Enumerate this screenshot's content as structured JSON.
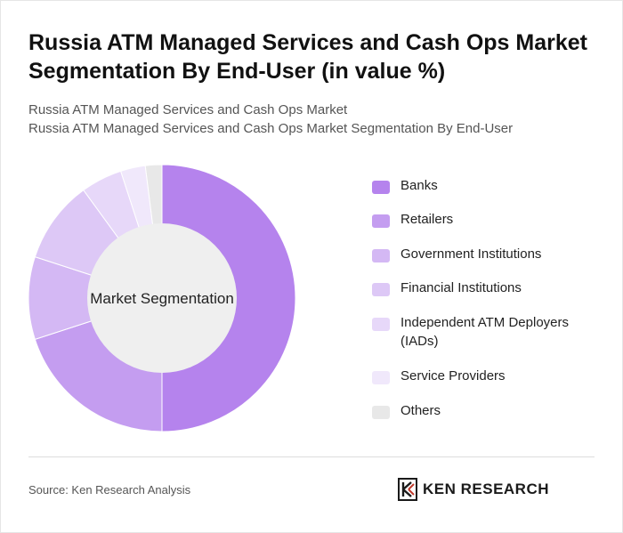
{
  "header": {
    "title": "Russia ATM Managed Services and Cash Ops Market Segmentation By End-User (in value %)",
    "subtitle_line1": "Russia ATM Managed Services and Cash Ops Market",
    "subtitle_line2": "Russia ATM Managed Services and Cash Ops Market Segmentation By End-User"
  },
  "chart_data": {
    "type": "pie",
    "center_label": "Market Segmentation",
    "categories": [
      "Banks",
      "Retailers",
      "Government Institutions",
      "Financial Institutions",
      "Independent ATM Deployers (IADs)",
      "Service Providers",
      "Others"
    ],
    "values": [
      50,
      20,
      10,
      10,
      5,
      3,
      2
    ],
    "colors": [
      "#b583ed",
      "#c49df0",
      "#d4b8f4",
      "#ddc8f6",
      "#e7d8f9",
      "#f0e8fb",
      "#e8e8e8"
    ],
    "legend_position": "right"
  },
  "footer": {
    "source": "Source: Ken Research Analysis",
    "logo_text": "KEN RESEARCH"
  }
}
